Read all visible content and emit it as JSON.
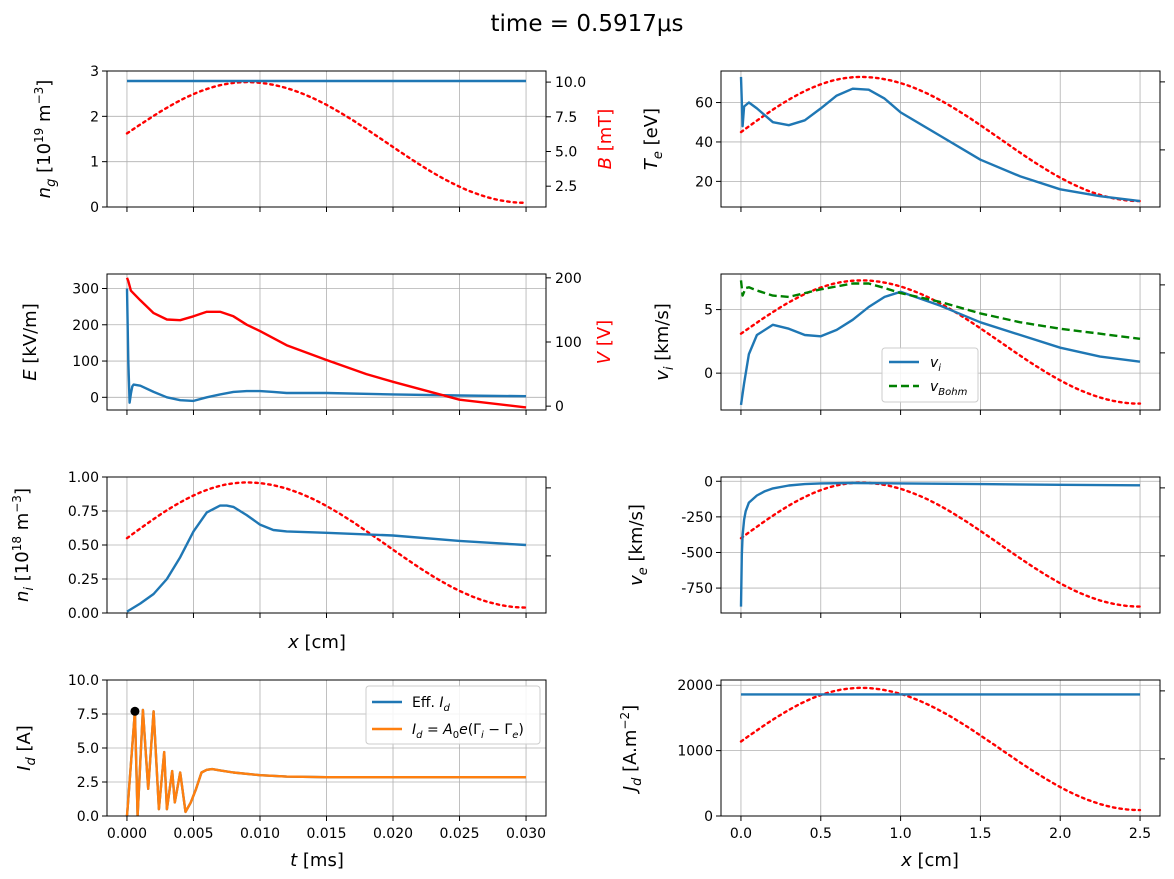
{
  "figure": {
    "title": "time = 0.5917μs"
  },
  "chart_data": [
    {
      "id": "ng",
      "type": "line",
      "ylabel": "n_g [10^19 m^-3]",
      "ylim": [
        0,
        3
      ],
      "yticks": [
        "0",
        "1",
        "2",
        "3"
      ],
      "xlim": [
        -0.0015,
        0.0315
      ],
      "xticks": [
        0,
        0.005,
        0.01,
        0.015,
        0.02,
        0.025,
        0.03
      ],
      "ylabel_right": "B [mT]",
      "ylim_right": [
        1.0,
        10.8
      ],
      "yticks_right": [
        "2.5",
        "5.0",
        "7.5",
        "10.0"
      ],
      "right_label_color": "#ff0000",
      "grid": true,
      "series": [
        {
          "x": [
            0,
            0.03
          ],
          "y": [
            2.78,
            2.78
          ],
          "color": "#1f77b4",
          "style": "solid"
        }
      ],
      "overlay": {
        "color": "#ff0000",
        "style": "dotted",
        "y_peak": 10.0,
        "y_start": 6.3,
        "y_end": 1.3,
        "axis": "right"
      }
    },
    {
      "id": "Te",
      "type": "line",
      "ylabel": "T_e [eV]",
      "ylim": [
        7,
        76
      ],
      "yticks": [
        "20",
        "40",
        "60"
      ],
      "xlim": [
        -0.125,
        2.625
      ],
      "xticks": [
        0,
        0.5,
        1.0,
        1.5,
        2.0,
        2.5
      ],
      "grid": true,
      "series": [
        {
          "x": [
            0,
            0.01,
            0.02,
            0.05,
            0.1,
            0.2,
            0.3,
            0.4,
            0.5,
            0.6,
            0.7,
            0.8,
            0.9,
            1.0,
            1.25,
            1.5,
            1.75,
            2.0,
            2.25,
            2.5
          ],
          "y": [
            73,
            48,
            58,
            60,
            57,
            50,
            48.5,
            51,
            57,
            63.5,
            67,
            66.5,
            62,
            55,
            43,
            31,
            22.5,
            16,
            12.5,
            10
          ],
          "color": "#1f77b4",
          "style": "solid"
        }
      ],
      "overlay": {
        "color": "#ff0000",
        "style": "dotted",
        "y_peak": 73,
        "y_start": 45,
        "y_end": 10,
        "axis": "left"
      }
    },
    {
      "id": "E",
      "type": "line",
      "ylabel": "E [kV/m]",
      "ylim": [
        -35,
        340
      ],
      "yticks": [
        "0",
        "100",
        "200",
        "300"
      ],
      "xlim": [
        -0.0015,
        0.0315
      ],
      "xticks": [
        0,
        0.005,
        0.01,
        0.015,
        0.02,
        0.025,
        0.03
      ],
      "ylabel_right": "V [V]",
      "ylim_right": [
        -6,
        206
      ],
      "yticks_right": [
        "0",
        "100",
        "200"
      ],
      "right_label_color": "#ff0000",
      "grid": true,
      "series": [
        {
          "x": [
            0,
            0.0001,
            0.0002,
            0.0003,
            0.0004,
            0.0005,
            0.001,
            0.002,
            0.003,
            0.004,
            0.005,
            0.006,
            0.007,
            0.008,
            0.009,
            0.01,
            0.011,
            0.012,
            0.015,
            0.02,
            0.025,
            0.03
          ],
          "y": [
            300,
            100,
            -15,
            10,
            30,
            35,
            32,
            15,
            0,
            -8,
            -10,
            0,
            8,
            15,
            17,
            17,
            15,
            12,
            12,
            8,
            5,
            3
          ],
          "color": "#1f77b4",
          "style": "solid",
          "axis": "left"
        },
        {
          "x": [
            0,
            0.0001,
            0.0003,
            0.001,
            0.002,
            0.003,
            0.004,
            0.005,
            0.006,
            0.007,
            0.008,
            0.009,
            0.01,
            0.012,
            0.015,
            0.018,
            0.02,
            0.025,
            0.03
          ],
          "y": [
            200,
            195,
            180,
            165,
            145,
            135,
            134,
            140,
            147,
            147,
            140,
            127,
            117,
            95,
            72,
            50,
            38,
            10,
            -2
          ],
          "color": "#ff0000",
          "style": "solid",
          "axis": "right"
        }
      ]
    },
    {
      "id": "vi",
      "type": "line",
      "ylabel": "v_i [km/s]",
      "ylim": [
        -2.9,
        7.8
      ],
      "yticks": [
        "0",
        "5"
      ],
      "xlim": [
        -0.125,
        2.625
      ],
      "xticks": [
        0,
        0.5,
        1.0,
        1.5,
        2.0,
        2.5
      ],
      "grid": true,
      "legend": {
        "position": "lower-center"
      },
      "series": [
        {
          "name": "v_i",
          "x": [
            0,
            0.02,
            0.05,
            0.1,
            0.2,
            0.3,
            0.4,
            0.5,
            0.6,
            0.7,
            0.8,
            0.9,
            1.0,
            1.25,
            1.5,
            1.75,
            2.0,
            2.25,
            2.5
          ],
          "y": [
            -2.5,
            -0.8,
            1.5,
            3.0,
            3.8,
            3.5,
            3.0,
            2.9,
            3.4,
            4.2,
            5.2,
            6.0,
            6.4,
            5.3,
            4.0,
            3.0,
            2.0,
            1.3,
            0.9
          ],
          "color": "#1f77b4",
          "style": "solid"
        },
        {
          "name": "v_Bohm",
          "x": [
            0,
            0.01,
            0.03,
            0.05,
            0.1,
            0.2,
            0.3,
            0.5,
            0.7,
            0.8,
            0.9,
            1.0,
            1.25,
            1.5,
            1.75,
            2.0,
            2.25,
            2.5
          ],
          "y": [
            7.3,
            6.1,
            6.7,
            6.75,
            6.5,
            6.1,
            6.0,
            6.6,
            7.05,
            7.05,
            6.7,
            6.3,
            5.6,
            4.7,
            4.0,
            3.5,
            3.1,
            2.7
          ],
          "color": "#008000",
          "style": "dashed"
        }
      ],
      "overlay": {
        "color": "#ff0000",
        "style": "dotted",
        "y_peak": 7.3,
        "y_start": 3.1,
        "y_end": -2.4,
        "axis": "left"
      }
    },
    {
      "id": "ni",
      "type": "line",
      "ylabel": "n_i [10^18 m^-3]",
      "ylim": [
        0,
        1.0
      ],
      "yticks": [
        "0.00",
        "0.25",
        "0.50",
        "0.75",
        "1.00"
      ],
      "xlim": [
        -0.0015,
        0.0315
      ],
      "xticks": [
        0,
        0.005,
        0.01,
        0.015,
        0.02,
        0.025,
        0.03
      ],
      "xlabel": "x [cm]",
      "grid": true,
      "series": [
        {
          "x": [
            0,
            0.001,
            0.002,
            0.003,
            0.004,
            0.005,
            0.006,
            0.007,
            0.0075,
            0.008,
            0.009,
            0.01,
            0.011,
            0.012,
            0.015,
            0.02,
            0.025,
            0.03
          ],
          "y": [
            0.01,
            0.07,
            0.14,
            0.25,
            0.41,
            0.6,
            0.74,
            0.79,
            0.79,
            0.78,
            0.72,
            0.65,
            0.61,
            0.6,
            0.59,
            0.57,
            0.53,
            0.5
          ],
          "color": "#1f77b4",
          "style": "solid"
        }
      ],
      "overlay": {
        "color": "#ff0000",
        "style": "dotted",
        "y_peak": 0.96,
        "y_start": 0.55,
        "y_end": 0.04,
        "axis": "left"
      }
    },
    {
      "id": "ve",
      "type": "line",
      "ylabel": "v_e [km/s]",
      "ylim": [
        -925,
        30
      ],
      "yticks": [
        "0",
        "-250",
        "-500",
        "-750"
      ],
      "xlim": [
        -0.125,
        2.625
      ],
      "xticks": [
        0,
        0.5,
        1.0,
        1.5,
        2.0,
        2.5
      ],
      "grid": true,
      "series": [
        {
          "x": [
            0,
            0.005,
            0.01,
            0.02,
            0.03,
            0.05,
            0.1,
            0.15,
            0.2,
            0.3,
            0.4,
            0.5,
            0.7,
            1.0,
            1.5,
            2.0,
            2.5
          ],
          "y": [
            -880,
            -520,
            -380,
            -270,
            -210,
            -150,
            -100,
            -70,
            -50,
            -30,
            -20,
            -15,
            -12,
            -15,
            -20,
            -25,
            -28
          ],
          "color": "#1f77b4",
          "style": "solid"
        }
      ],
      "overlay": {
        "color": "#ff0000",
        "style": "dotted",
        "y_peak": -10,
        "y_start": -400,
        "y_end": -880,
        "axis": "left"
      }
    },
    {
      "id": "Id",
      "type": "line",
      "ylabel": "I_d [A]",
      "ylim": [
        0,
        10.0
      ],
      "yticks": [
        "0.0",
        "2.5",
        "5.0",
        "7.5",
        "10.0"
      ],
      "xlim": [
        -0.0015,
        0.0315
      ],
      "xticks": [
        0,
        0.005,
        0.01,
        0.015,
        0.02,
        0.025,
        0.03
      ],
      "xticklabels": [
        "0.000",
        "0.005",
        "0.010",
        "0.015",
        "0.020",
        "0.025",
        "0.030"
      ],
      "xlabel": "t [ms]",
      "grid": true,
      "legend": {
        "position": "top-right"
      },
      "series": [
        {
          "name": "Eff. I_d",
          "x": [
            0,
            0.0006,
            0.0008,
            0.0012,
            0.0016,
            0.002,
            0.0024,
            0.0028,
            0.003,
            0.0034,
            0.0036,
            0.004,
            0.0044,
            0.0048,
            0.0052,
            0.0056,
            0.006,
            0.0064,
            0.007,
            0.008,
            0.01,
            0.012,
            0.015,
            0.02,
            0.025,
            0.03
          ],
          "y": [
            0,
            7.7,
            0.0,
            7.8,
            2.0,
            7.7,
            0.5,
            4.7,
            0.5,
            3.3,
            1.0,
            3.2,
            0.3,
            1.0,
            2.0,
            3.2,
            3.4,
            3.45,
            3.35,
            3.2,
            3.0,
            2.9,
            2.85,
            2.85,
            2.85,
            2.85
          ],
          "color": "#1f77b4",
          "style": "solid"
        },
        {
          "name": "I_d = A_0 e(Γ_i − Γ_e)",
          "x": [
            0,
            0.0006,
            0.0008,
            0.0012,
            0.0016,
            0.002,
            0.0024,
            0.0028,
            0.003,
            0.0034,
            0.0036,
            0.004,
            0.0044,
            0.0048,
            0.0052,
            0.0056,
            0.006,
            0.0064,
            0.007,
            0.008,
            0.01,
            0.012,
            0.015,
            0.02,
            0.025,
            0.03
          ],
          "y": [
            0,
            7.7,
            0.0,
            7.8,
            2.0,
            7.7,
            0.5,
            4.7,
            0.5,
            3.3,
            1.0,
            3.2,
            0.3,
            1.0,
            2.0,
            3.2,
            3.4,
            3.45,
            3.35,
            3.2,
            3.0,
            2.9,
            2.85,
            2.85,
            2.85,
            2.85
          ],
          "color": "#ff7f0e",
          "style": "solid"
        }
      ],
      "marker": {
        "x": 0.0006,
        "y": 7.7,
        "color": "#000000"
      }
    },
    {
      "id": "Jd",
      "type": "line",
      "ylabel": "J_d [A.m^-2]",
      "ylim": [
        0,
        2080
      ],
      "yticks": [
        "0",
        "1000",
        "2000"
      ],
      "xlim": [
        -0.125,
        2.625
      ],
      "xticks": [
        0,
        0.5,
        1.0,
        1.5,
        2.0,
        2.5
      ],
      "xticklabels": [
        "0.0",
        "0.5",
        "1.0",
        "1.5",
        "2.0",
        "2.5"
      ],
      "xlabel": "x [cm]",
      "grid": true,
      "series": [
        {
          "x": [
            0,
            2.5
          ],
          "y": [
            1860,
            1860
          ],
          "color": "#1f77b4",
          "style": "solid"
        }
      ],
      "overlay": {
        "color": "#ff0000",
        "style": "dotted",
        "y_peak": 1960,
        "y_start": 1140,
        "y_end": 90,
        "axis": "left"
      }
    }
  ]
}
